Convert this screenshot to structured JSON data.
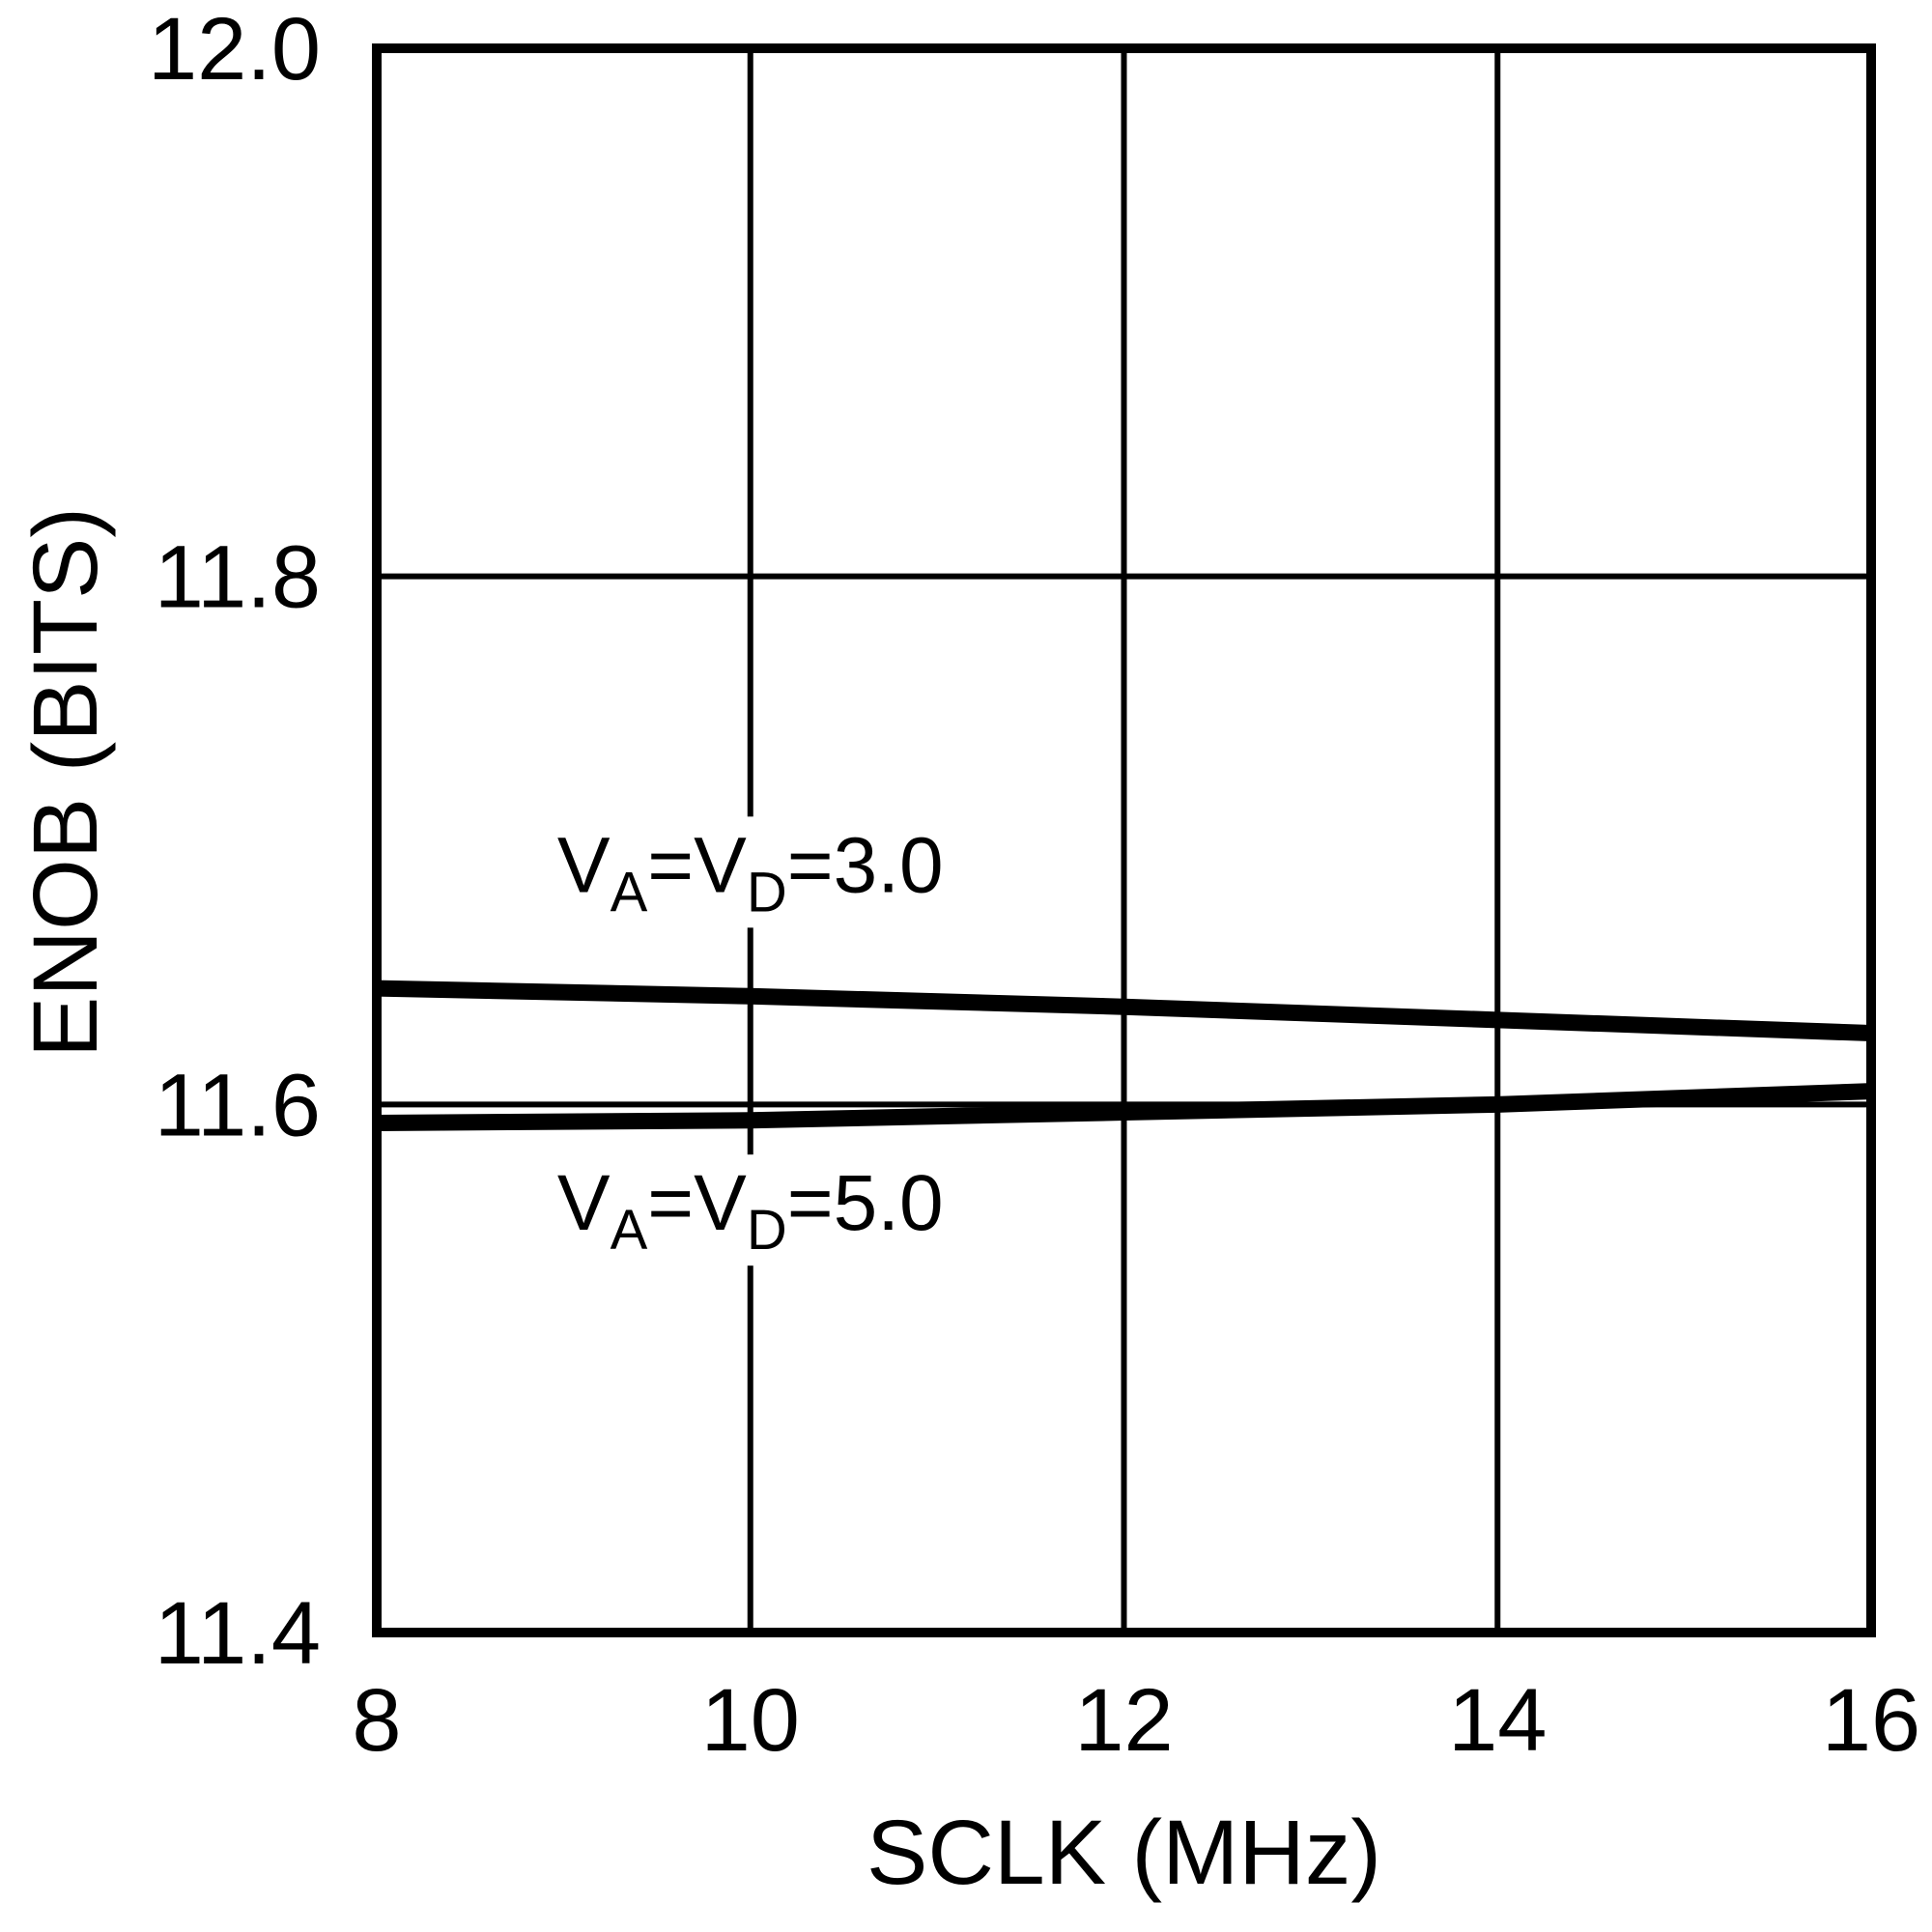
{
  "figure": {
    "background": "#ffffff",
    "foreground": "#000000"
  },
  "chart_data": {
    "type": "line",
    "title": "",
    "xlabel": "SCLK (MHz)",
    "ylabel": "ENOB (BITS)",
    "xlim": [
      8,
      16
    ],
    "ylim": [
      11.4,
      12.0
    ],
    "grid": true,
    "legend_position": "none (inline annotations)",
    "x": [
      8,
      10,
      12,
      14,
      16
    ],
    "xticks": [
      8,
      10,
      12,
      14,
      16
    ],
    "xtick_labels": [
      "8",
      "10",
      "12",
      "14",
      "16"
    ],
    "yticks": [
      11.4,
      11.6,
      11.8,
      12.0
    ],
    "ytick_labels": [
      "11.4",
      "11.6",
      "11.8",
      "12.0"
    ],
    "series": [
      {
        "name": "VA=VD=3.0",
        "values": [
          11.644,
          11.641,
          11.637,
          11.632,
          11.627
        ]
      },
      {
        "name": "VA=VD=5.0",
        "values": [
          11.593,
          11.594,
          11.597,
          11.6,
          11.605
        ]
      }
    ],
    "annotations": [
      {
        "x": 10,
        "y": 11.69,
        "parts": [
          {
            "t": "V",
            "sub": false
          },
          {
            "t": "A",
            "sub": true
          },
          {
            "t": "=V",
            "sub": false
          },
          {
            "t": "D",
            "sub": true
          },
          {
            "t": "=3.0",
            "sub": false
          }
        ]
      },
      {
        "x": 10,
        "y": 11.562,
        "parts": [
          {
            "t": "V",
            "sub": false
          },
          {
            "t": "A",
            "sub": true
          },
          {
            "t": "=V",
            "sub": false
          },
          {
            "t": "D",
            "sub": true
          },
          {
            "t": "=5.0",
            "sub": false
          }
        ]
      }
    ],
    "line_color": "#000000"
  }
}
